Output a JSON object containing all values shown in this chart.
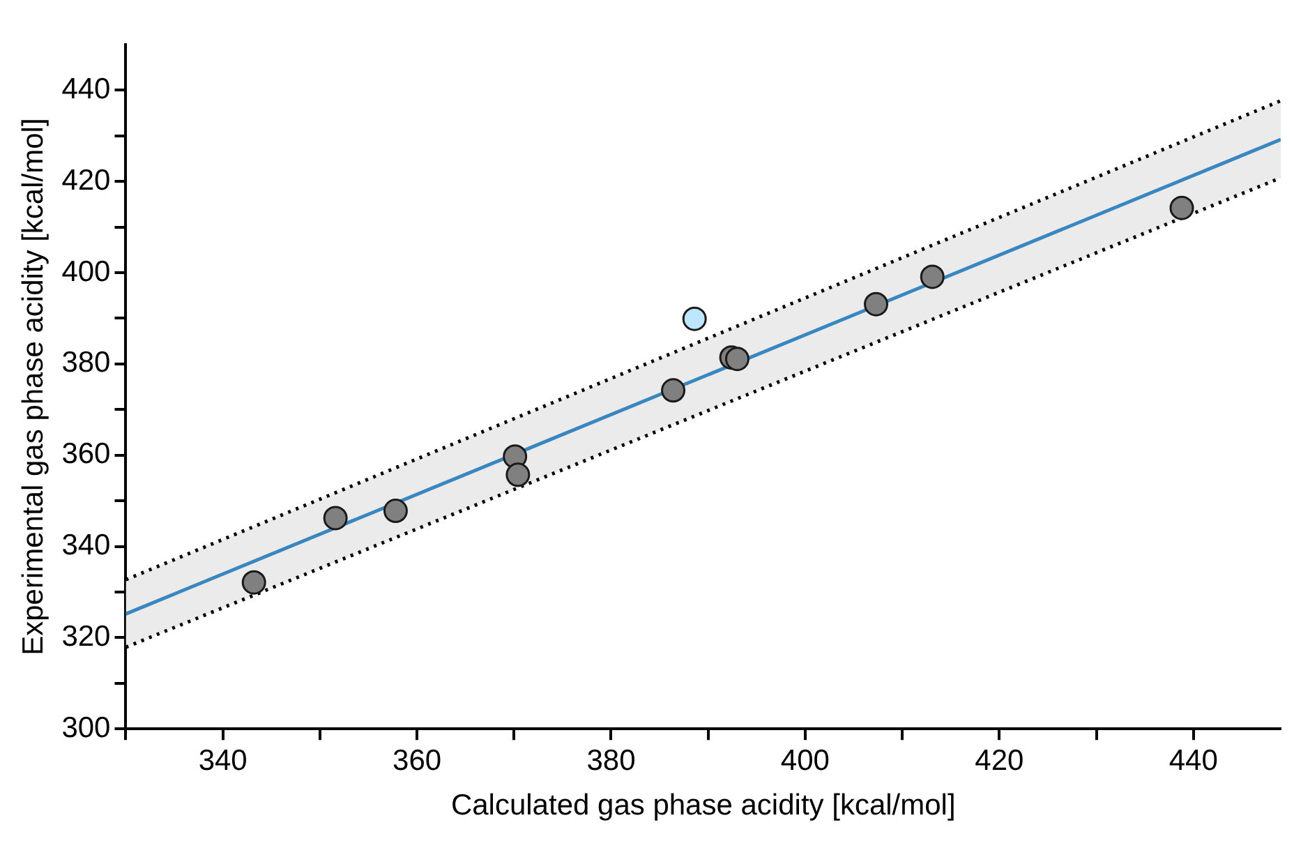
{
  "chart_data": {
    "type": "scatter",
    "xlabel": "Calculated gas phase acidity [kcal/mol]",
    "ylabel": "Experimental gas phase acidity [kcal/mol]",
    "xlim": [
      330,
      449
    ],
    "ylim": [
      300,
      450
    ],
    "xticks": [
      {
        "value": 330,
        "label": null
      },
      340,
      {
        "value": 350,
        "label": null
      },
      360,
      {
        "value": 370,
        "label": null
      },
      380,
      {
        "value": 390,
        "label": null
      },
      400,
      {
        "value": 410,
        "label": null
      },
      420,
      {
        "value": 430,
        "label": null
      },
      440
    ],
    "yticks": [
      300,
      {
        "value": 310,
        "label": null
      },
      320,
      {
        "value": 330,
        "label": null
      },
      340,
      {
        "value": 350,
        "label": null
      },
      360,
      {
        "value": 370,
        "label": null
      },
      380,
      {
        "value": 390,
        "label": null
      },
      400,
      {
        "value": 410,
        "label": null
      },
      420,
      {
        "value": 430,
        "label": null
      },
      440
    ],
    "grid": false,
    "legend": false,
    "marker": "circle",
    "series": [
      {
        "type": "line",
        "marker": "none",
        "color": "#3a87c0",
        "x": [
          330,
          449
        ],
        "values": [
          325.2,
          429.2
        ],
        "lower": [
          317.9,
          420.8
        ],
        "upper": [
          332.7,
          437.7
        ]
      },
      {
        "type": "line",
        "marker": "none",
        "line_style": "dotted",
        "color": "#000000",
        "x": [
          330,
          449
        ],
        "values": [
          332.7,
          437.7
        ]
      },
      {
        "type": "line",
        "marker": "none",
        "line_style": "dotted",
        "color": "#000000",
        "x": [
          330,
          449
        ],
        "values": [
          317.9,
          420.8
        ]
      },
      {
        "colors": [
          "#808080",
          "#808080",
          "#808080",
          "#808080",
          "#808080",
          "#808080",
          "#bfe6ff",
          "#808080",
          "#808080",
          "#808080",
          "#808080",
          "#808080"
        ],
        "x": [
          343.2,
          351.6,
          357.8,
          370.1,
          370.4,
          386.4,
          388.6,
          392.4,
          393.0,
          407.3,
          413.1,
          438.8
        ],
        "values": [
          332.1,
          346.2,
          347.8,
          359.7,
          355.7,
          374.2,
          389.9,
          381.4,
          381.1,
          393.1,
          399.1,
          414.2
        ]
      }
    ]
  }
}
